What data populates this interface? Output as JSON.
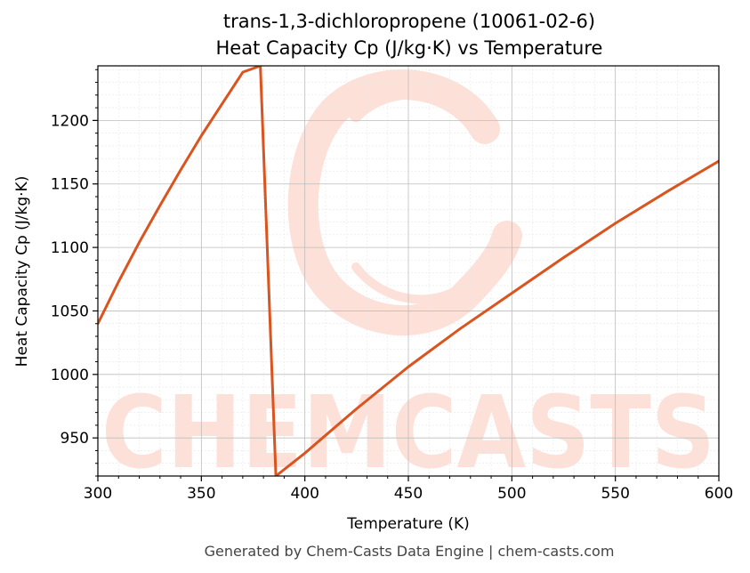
{
  "chart_data": {
    "type": "line",
    "title": "trans-1,3-dichloropropene (10061-02-6)",
    "subtitle": "Heat Capacity Cp (J/kg·K) vs Temperature",
    "xlabel": "Temperature (K)",
    "ylabel": "Heat Capacity Cp (J/kg·K)",
    "xlim": [
      300,
      600
    ],
    "ylim": [
      920,
      1243
    ],
    "xticks": [
      300,
      350,
      400,
      450,
      500,
      550,
      600
    ],
    "yticks": [
      950,
      1000,
      1050,
      1100,
      1150,
      1200
    ],
    "grid": true,
    "line_color": "#d9541e",
    "series": [
      {
        "x": [
          300,
          310,
          320,
          330,
          340,
          350,
          360,
          370,
          378.5,
          386,
          400,
          425,
          450,
          475,
          500,
          525,
          550,
          575,
          600
        ],
        "y": [
          1040,
          1073,
          1104,
          1133,
          1161,
          1188,
          1213,
          1238,
          1243,
          920,
          938,
          973,
          1006,
          1036,
          1064,
          1092,
          1119,
          1144,
          1168
        ]
      }
    ]
  },
  "watermark": {
    "text": "CHEMCASTS"
  },
  "footer": "Generated by Chem-Casts Data Engine | chem-casts.com"
}
